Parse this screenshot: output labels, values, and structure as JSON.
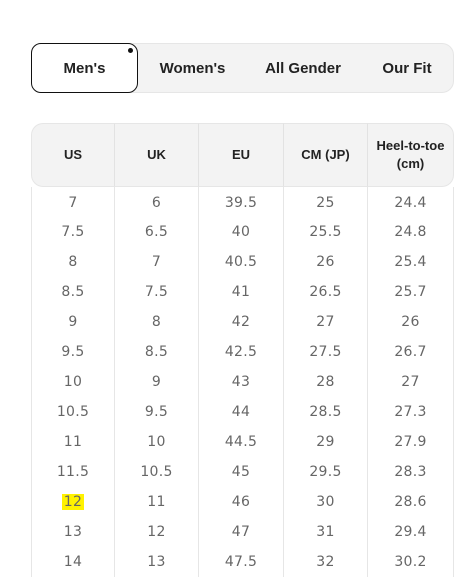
{
  "tabs": [
    {
      "label": "Men's",
      "active": true
    },
    {
      "label": "Women's",
      "active": false
    },
    {
      "label": "All Gender",
      "active": false
    },
    {
      "label": "Our Fit",
      "active": false
    }
  ],
  "table": {
    "headers": [
      "US",
      "UK",
      "EU",
      "CM (JP)",
      "Heel-to-toe (cm)"
    ],
    "rows": [
      [
        "7",
        "6",
        "39.5",
        "25",
        "24.4"
      ],
      [
        "7.5",
        "6.5",
        "40",
        "25.5",
        "24.8"
      ],
      [
        "8",
        "7",
        "40.5",
        "26",
        "25.4"
      ],
      [
        "8.5",
        "7.5",
        "41",
        "26.5",
        "25.7"
      ],
      [
        "9",
        "8",
        "42",
        "27",
        "26"
      ],
      [
        "9.5",
        "8.5",
        "42.5",
        "27.5",
        "26.7"
      ],
      [
        "10",
        "9",
        "43",
        "28",
        "27"
      ],
      [
        "10.5",
        "9.5",
        "44",
        "28.5",
        "27.3"
      ],
      [
        "11",
        "10",
        "44.5",
        "29",
        "27.9"
      ],
      [
        "11.5",
        "10.5",
        "45",
        "29.5",
        "28.3"
      ],
      [
        "12",
        "11",
        "46",
        "30",
        "28.6"
      ],
      [
        "13",
        "12",
        "47",
        "31",
        "29.4"
      ],
      [
        "14",
        "13",
        "47.5",
        "32",
        "30.2"
      ]
    ],
    "highlighted_value": "12"
  },
  "colors": {
    "highlight": "#fff200",
    "header_bg": "#f3f3f3",
    "active_border": "#111111"
  }
}
